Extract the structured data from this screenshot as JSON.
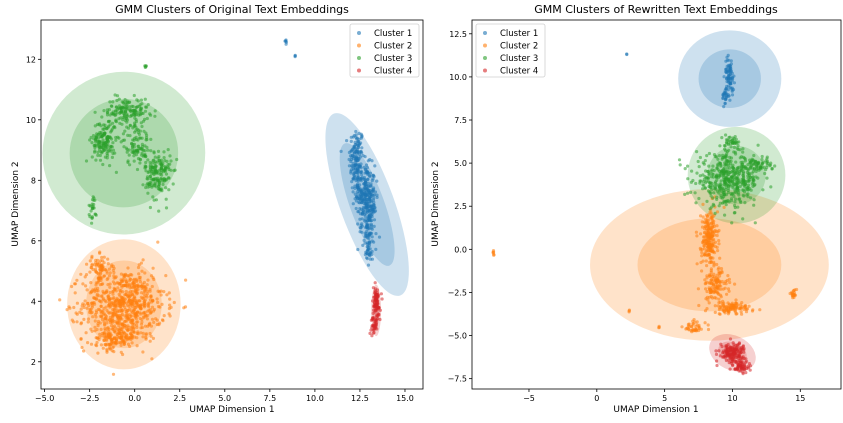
{
  "chart_data": [
    {
      "type": "scatter",
      "title": "GMM Clusters of Original Text Embeddings",
      "xlabel": "UMAP Dimension 1",
      "ylabel": "UMAP Dimension 2",
      "xlim": [
        -5.2,
        16.0
      ],
      "ylim": [
        1.1,
        13.3
      ],
      "xticks": [
        -5.0,
        -2.5,
        0.0,
        2.5,
        5.0,
        7.5,
        10.0,
        12.5,
        15.0
      ],
      "xtick_labels": [
        "−5.0",
        "−2.5",
        "0.0",
        "2.5",
        "5.0",
        "7.5",
        "10.0",
        "12.5",
        "15.0"
      ],
      "yticks": [
        2,
        4,
        6,
        8,
        10,
        12
      ],
      "ytick_labels": [
        "2",
        "4",
        "6",
        "8",
        "10",
        "12"
      ],
      "grid": false,
      "legend_position": "top-right",
      "series": [
        {
          "name": "Cluster 1",
          "color": "#1f77b4",
          "blobs": [
            {
              "cx": 12.3,
              "cy": 8.7,
              "rx": 0.35,
              "ry": 0.9,
              "n": 140
            },
            {
              "cx": 12.8,
              "cy": 7.6,
              "rx": 0.45,
              "ry": 0.75,
              "n": 220
            },
            {
              "cx": 13.0,
              "cy": 6.6,
              "rx": 0.35,
              "ry": 0.7,
              "n": 120
            },
            {
              "cx": 13.0,
              "cy": 5.6,
              "rx": 0.15,
              "ry": 0.4,
              "n": 30
            },
            {
              "cx": 8.4,
              "cy": 12.6,
              "rx": 0.08,
              "ry": 0.06,
              "n": 6
            },
            {
              "cx": 8.9,
              "cy": 12.1,
              "rx": 0.05,
              "ry": 0.04,
              "n": 3
            }
          ],
          "ellipses": [
            {
              "cx": 12.9,
              "cy": 7.2,
              "w": 3.0,
              "h": 6.4,
              "angle": 20,
              "alpha": 0.22
            },
            {
              "cx": 12.9,
              "cy": 7.2,
              "w": 1.9,
              "h": 4.3,
              "angle": 20,
              "alpha": 0.22
            }
          ]
        },
        {
          "name": "Cluster 2",
          "color": "#ff7f0e",
          "blobs": [
            {
              "cx": -0.6,
              "cy": 3.9,
              "rx": 1.9,
              "ry": 1.0,
              "n": 700
            },
            {
              "cx": -1.1,
              "cy": 2.8,
              "rx": 0.9,
              "ry": 0.35,
              "n": 140
            },
            {
              "cx": -2.0,
              "cy": 5.1,
              "rx": 0.5,
              "ry": 0.35,
              "n": 60
            }
          ],
          "ellipses": [
            {
              "cx": -0.6,
              "cy": 3.9,
              "w": 6.3,
              "h": 4.3,
              "angle": 0,
              "alpha": 0.22
            },
            {
              "cx": -0.6,
              "cy": 3.9,
              "w": 4.2,
              "h": 2.9,
              "angle": 0,
              "alpha": 0.22
            }
          ]
        },
        {
          "name": "Cluster 3",
          "color": "#2ca02c",
          "blobs": [
            {
              "cx": -1.7,
              "cy": 9.3,
              "rx": 0.55,
              "ry": 0.6,
              "n": 160
            },
            {
              "cx": -0.4,
              "cy": 10.3,
              "rx": 1.0,
              "ry": 0.35,
              "n": 150
            },
            {
              "cx": 0.1,
              "cy": 9.2,
              "rx": 0.6,
              "ry": 0.6,
              "n": 100
            },
            {
              "cx": 1.3,
              "cy": 8.2,
              "rx": 0.6,
              "ry": 0.7,
              "n": 170
            },
            {
              "cx": -2.3,
              "cy": 7.1,
              "rx": 0.2,
              "ry": 0.35,
              "n": 25
            },
            {
              "cx": 0.6,
              "cy": 11.8,
              "rx": 0.05,
              "ry": 0.1,
              "n": 5
            }
          ],
          "ellipses": [
            {
              "cx": -0.6,
              "cy": 8.9,
              "w": 9.0,
              "h": 5.4,
              "angle": -45,
              "alpha": 0.22
            },
            {
              "cx": -0.6,
              "cy": 8.9,
              "w": 6.0,
              "h": 3.6,
              "angle": -45,
              "alpha": 0.22
            }
          ]
        },
        {
          "name": "Cluster 4",
          "color": "#d62728",
          "blobs": [
            {
              "cx": 13.4,
              "cy": 3.9,
              "rx": 0.2,
              "ry": 0.5,
              "n": 90
            },
            {
              "cx": 13.3,
              "cy": 3.2,
              "rx": 0.15,
              "ry": 0.25,
              "n": 30
            }
          ],
          "ellipses": [
            {
              "cx": 13.4,
              "cy": 3.7,
              "w": 0.55,
              "h": 1.7,
              "angle": 0,
              "alpha": 0.22
            },
            {
              "cx": 13.4,
              "cy": 3.7,
              "w": 0.35,
              "h": 1.1,
              "angle": 0,
              "alpha": 0.22
            }
          ]
        }
      ]
    },
    {
      "type": "scatter",
      "title": "GMM Clusters of Rewritten Text Embeddings",
      "xlabel": "UMAP Dimension 1",
      "ylabel": "UMAP Dimension 2",
      "xlim": [
        -9.2,
        18.0
      ],
      "ylim": [
        -8.1,
        13.3
      ],
      "xticks": [
        -5,
        0,
        5,
        10,
        15
      ],
      "xtick_labels": [
        "−5",
        "0",
        "5",
        "10",
        "15"
      ],
      "yticks": [
        -7.5,
        -5.0,
        -2.5,
        0.0,
        2.5,
        5.0,
        7.5,
        10.0,
        12.5
      ],
      "ytick_labels": [
        "−7.5",
        "−5.0",
        "−2.5",
        "0.0",
        "2.5",
        "5.0",
        "7.5",
        "10.0",
        "12.5"
      ],
      "grid": false,
      "legend_position": "top-left",
      "series": [
        {
          "name": "Cluster 1",
          "color": "#1f77b4",
          "blobs": [
            {
              "cx": 9.8,
              "cy": 10.2,
              "rx": 0.3,
              "ry": 0.8,
              "n": 70
            },
            {
              "cx": 9.5,
              "cy": 8.9,
              "rx": 0.2,
              "ry": 0.5,
              "n": 30
            },
            {
              "cx": 2.2,
              "cy": 11.3,
              "rx": 0.05,
              "ry": 0.05,
              "n": 2
            }
          ],
          "ellipses": [
            {
              "cx": 9.8,
              "cy": 9.9,
              "w": 7.6,
              "h": 5.6,
              "angle": 0,
              "alpha": 0.22
            },
            {
              "cx": 9.8,
              "cy": 9.9,
              "w": 4.6,
              "h": 3.4,
              "angle": 0,
              "alpha": 0.22
            }
          ]
        },
        {
          "name": "Cluster 2",
          "color": "#ff7f0e",
          "blobs": [
            {
              "cx": 8.3,
              "cy": 0.6,
              "rx": 0.5,
              "ry": 1.4,
              "n": 220
            },
            {
              "cx": 8.7,
              "cy": -2.1,
              "rx": 0.8,
              "ry": 0.8,
              "n": 120
            },
            {
              "cx": 10.0,
              "cy": -3.4,
              "rx": 1.5,
              "ry": 0.3,
              "n": 100
            },
            {
              "cx": 7.2,
              "cy": -4.5,
              "rx": 0.7,
              "ry": 0.35,
              "n": 40
            },
            {
              "cx": 14.5,
              "cy": -2.6,
              "rx": 0.2,
              "ry": 0.2,
              "n": 20
            },
            {
              "cx": -7.6,
              "cy": -0.2,
              "rx": 0.05,
              "ry": 0.15,
              "n": 6
            },
            {
              "cx": 2.4,
              "cy": -3.6,
              "rx": 0.05,
              "ry": 0.05,
              "n": 3
            },
            {
              "cx": 4.6,
              "cy": -4.5,
              "rx": 0.05,
              "ry": 0.05,
              "n": 3
            }
          ],
          "ellipses": [
            {
              "cx": 8.3,
              "cy": -0.9,
              "w": 17.6,
              "h": 8.8,
              "angle": 0,
              "alpha": 0.22
            },
            {
              "cx": 8.3,
              "cy": -0.9,
              "w": 10.6,
              "h": 5.4,
              "angle": 0,
              "alpha": 0.22
            }
          ]
        },
        {
          "name": "Cluster 3",
          "color": "#2ca02c",
          "blobs": [
            {
              "cx": 9.7,
              "cy": 4.0,
              "rx": 2.0,
              "ry": 1.2,
              "n": 450
            },
            {
              "cx": 12.0,
              "cy": 4.9,
              "rx": 0.8,
              "ry": 0.3,
              "n": 60
            },
            {
              "cx": 9.9,
              "cy": 6.2,
              "rx": 0.5,
              "ry": 0.4,
              "n": 40
            }
          ],
          "ellipses": [
            {
              "cx": 10.3,
              "cy": 4.3,
              "w": 7.2,
              "h": 5.6,
              "angle": 0,
              "alpha": 0.22
            },
            {
              "cx": 10.3,
              "cy": 4.3,
              "w": 4.3,
              "h": 3.4,
              "angle": 0,
              "alpha": 0.22
            }
          ]
        },
        {
          "name": "Cluster 4",
          "color": "#d62728",
          "blobs": [
            {
              "cx": 10.0,
              "cy": -6.0,
              "rx": 0.8,
              "ry": 0.5,
              "n": 160
            },
            {
              "cx": 10.7,
              "cy": -6.8,
              "rx": 0.4,
              "ry": 0.3,
              "n": 50
            }
          ],
          "ellipses": [
            {
              "cx": 10.0,
              "cy": -6.0,
              "w": 3.6,
              "h": 2.0,
              "angle": -25,
              "alpha": 0.22
            },
            {
              "cx": 10.0,
              "cy": -6.0,
              "w": 2.2,
              "h": 1.2,
              "angle": -25,
              "alpha": 0.22
            }
          ]
        }
      ]
    }
  ]
}
